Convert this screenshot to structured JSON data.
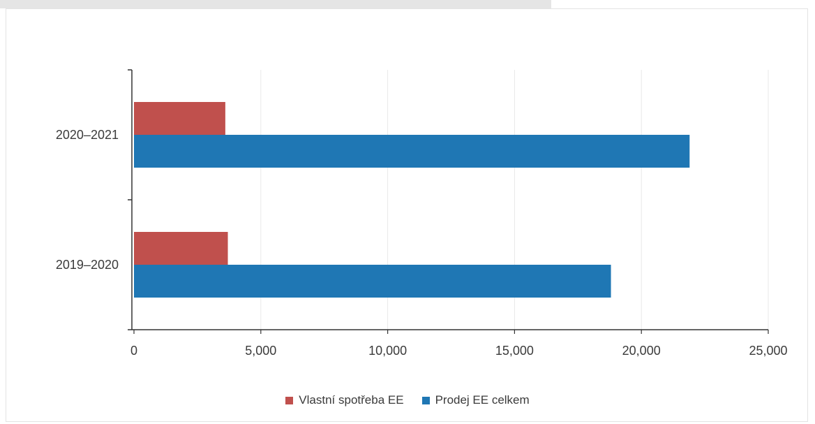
{
  "colors": {
    "vlastni": "#c0504d",
    "prodej": "#1f77b4",
    "grid": "#e8e8e8",
    "axis": "#333333"
  },
  "chart_data": {
    "type": "bar",
    "orientation": "horizontal",
    "categories": [
      "2020–2021",
      "2019–2020"
    ],
    "series": [
      {
        "name": "Vlastní spotřeba EE",
        "values": [
          3600,
          3700
        ],
        "color": "#c0504d"
      },
      {
        "name": "Prodej EE celkem",
        "values": [
          21900,
          18800
        ],
        "color": "#1f77b4"
      }
    ],
    "xlim": [
      0,
      25000
    ],
    "x_ticks": [
      0,
      5000,
      10000,
      15000,
      20000,
      25000
    ],
    "x_tick_labels": [
      "0",
      "5,000",
      "10,000",
      "15,000",
      "20,000",
      "25,000"
    ],
    "grid": true,
    "legend_position": "bottom"
  }
}
